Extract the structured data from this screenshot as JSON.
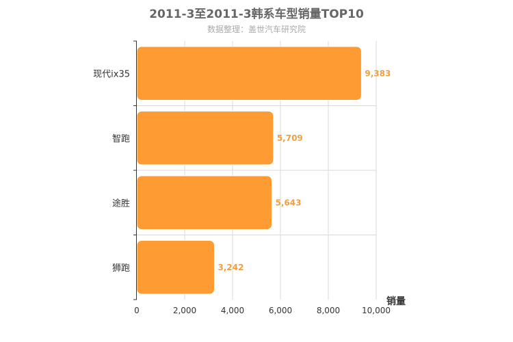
{
  "chart_data": {
    "type": "bar",
    "orientation": "horizontal",
    "title": "2011-3至2011-3韩系车型销量TOP10",
    "subtitle": "数据整理：盖世汽车研究院",
    "categories": [
      "现代ix35",
      "智跑",
      "途胜",
      "狮跑"
    ],
    "values": [
      9383,
      5709,
      5643,
      3242
    ],
    "value_labels": [
      "9,383",
      "5,709",
      "5,643",
      "3,242"
    ],
    "xlabel": "销量",
    "ylabel": "",
    "xlim": [
      0,
      10000
    ],
    "x_ticks": [
      0,
      2000,
      4000,
      6000,
      8000,
      10000
    ],
    "x_tick_labels": [
      "0",
      "2,000",
      "4,000",
      "6,000",
      "8,000",
      "10,000"
    ],
    "grid": true,
    "legend": "none",
    "colors": {
      "bar": "#ff9b33",
      "bar_stroke": "#ffffff",
      "value_label": "#f0a040",
      "grid": "#d8d8d8",
      "axis": "#333333",
      "title": "#666666",
      "subtitle": "#aaaaaa",
      "category_label": "#333333"
    }
  }
}
